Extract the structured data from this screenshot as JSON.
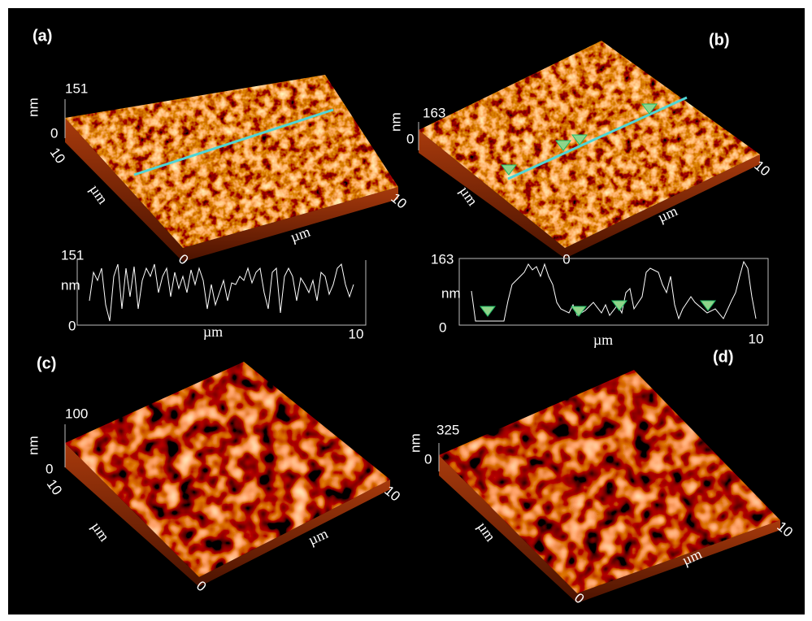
{
  "panels": [
    {
      "label": "(a)",
      "surface": {
        "z_max": "151",
        "z_unit": "nm",
        "z_min": "0",
        "y_max": "10",
        "y_unit": "µm",
        "origin": "0",
        "x_unit": "µm",
        "x_max": "10"
      },
      "profile": {
        "y_max": "151",
        "y_unit": "nm",
        "y_min": "0",
        "x_unit": "µm",
        "x_max": "10"
      }
    },
    {
      "label": "(b)",
      "surface": {
        "z_max": "163",
        "z_unit": "nm",
        "z_min": "0",
        "y_unit": "µm",
        "origin": "0",
        "x_unit": "µm",
        "x_max": "10"
      },
      "profile": {
        "y_max": "163",
        "y_unit": "nm",
        "y_min": "0",
        "x_unit": "µm",
        "x_max": "10"
      }
    },
    {
      "label": "(c)",
      "surface": {
        "z_max": "100",
        "z_unit": "nm",
        "z_min": "0",
        "y_max": "10",
        "y_unit": "µm",
        "origin": "0",
        "x_unit": "µm",
        "x_max": "10"
      }
    },
    {
      "label": "(d)",
      "surface": {
        "z_max": "325",
        "z_unit": "nm",
        "z_min": "0",
        "y_unit": "µm",
        "origin": "0",
        "x_unit": "µm",
        "x_max": "10"
      }
    }
  ]
}
